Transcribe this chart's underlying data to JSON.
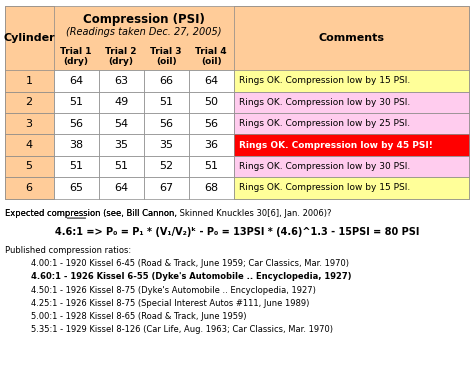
{
  "title_main": "Compression (PSI)",
  "title_sub": "(Readings taken Dec. 27, 2005)",
  "cylinders": [
    1,
    2,
    3,
    4,
    5,
    6
  ],
  "trial1": [
    64,
    51,
    56,
    38,
    51,
    65
  ],
  "trial2": [
    63,
    49,
    54,
    35,
    51,
    64
  ],
  "trial3": [
    66,
    51,
    56,
    35,
    52,
    67
  ],
  "trial4": [
    64,
    50,
    56,
    36,
    51,
    68
  ],
  "comments": [
    "Rings OK. Compression low by 15 PSI.",
    "Rings OK. Compression low by 30 PSI.",
    "Rings OK. Compression low by 25 PSI.",
    "Rings OK. Compression low by 45 PSI!",
    "Rings OK. Compression low by 30 PSI.",
    "Rings OK. Compression low by 15 PSI."
  ],
  "comment_colors": [
    "#ffff99",
    "#ffccee",
    "#ffccee",
    "#ff0000",
    "#ffccee",
    "#ffff99"
  ],
  "comment_text_colors": [
    "#000000",
    "#000000",
    "#000000",
    "#ffffff",
    "#000000",
    "#000000"
  ],
  "cyl_col_bg": "#ffcc99",
  "data_bg": "#ffffff",
  "border_color": "#888888",
  "published_lines": [
    "4.00:1 - 1920 Kissel 6-45 (Road & Track, June 1959; Car Classics, Mar. 1970)",
    "4.60:1 - 1926 Kissel 6-55 (Dyke's Automobile .. Encyclopedia, 1927)",
    "4.50:1 - 1926 Kissel 8-75 (Dyke's Automobile .. Encyclopedia, 1927)",
    "4.25:1 - 1926 Kissel 8-75 (Special Interest Autos #111, June 1989)",
    "5.00:1 - 1928 Kissel 8-65 (Road & Track, June 1959)",
    "5.35:1 - 1929 Kissel 8-126 (Car Life, Aug. 1963; Car Classics, Mar. 1970)"
  ],
  "published_bold": [
    false,
    true,
    false,
    false,
    false,
    false
  ],
  "bg_color": "#ffffff"
}
